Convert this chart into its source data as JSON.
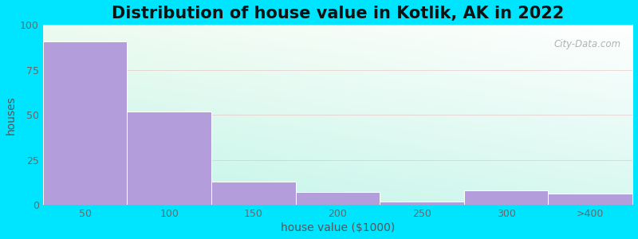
{
  "title": "Distribution of house value in Kotlik, AK in 2022",
  "xlabel": "house value ($1000)",
  "ylabel": "houses",
  "categories": [
    "50",
    "100",
    "150",
    "200",
    "250",
    "300",
    ">400"
  ],
  "values": [
    91,
    52,
    13,
    7,
    2,
    8,
    6
  ],
  "bar_color": "#b39ddb",
  "bar_edgecolor": "#ffffff",
  "ylim": [
    0,
    100
  ],
  "yticks": [
    0,
    25,
    50,
    75,
    100
  ],
  "outer_bg": "#00e5ff",
  "title_fontsize": 15,
  "axis_label_fontsize": 10,
  "tick_fontsize": 9,
  "watermark_text": "City-Data.com",
  "grid_color": "#e8b4b8",
  "grid_alpha": 0.6
}
